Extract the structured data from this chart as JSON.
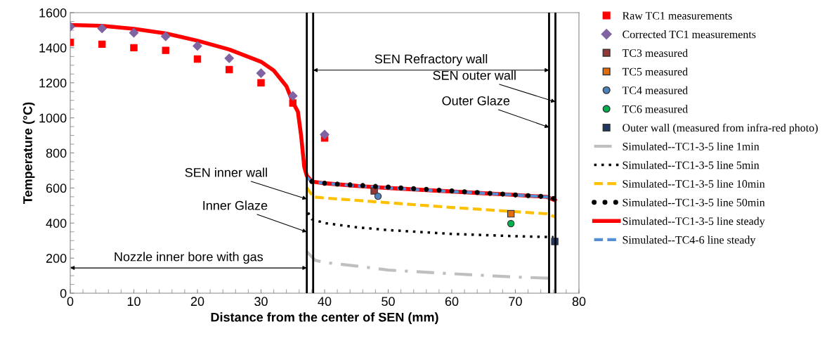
{
  "chart_data": {
    "type": "scatter",
    "xlabel": "Distance from the center of SEN (mm)",
    "ylabel": "Temperature (°C)",
    "xlim": [
      0,
      80
    ],
    "xticks": [
      0,
      10,
      20,
      30,
      40,
      50,
      60,
      70,
      80
    ],
    "ylim": [
      0,
      1600
    ],
    "yticks": [
      0,
      200,
      400,
      600,
      800,
      1000,
      1200,
      1400,
      1600
    ],
    "grid": false,
    "legend": "right",
    "series": [
      {
        "name": "Raw TC1 measurements",
        "marker": "square",
        "color": "#ff0000",
        "x": [
          0,
          5,
          10,
          15,
          20,
          25,
          30,
          35,
          40
        ],
        "values": [
          1430,
          1420,
          1400,
          1385,
          1335,
          1275,
          1200,
          1085,
          885
        ]
      },
      {
        "name": "Corrected TC1 measurements",
        "marker": "diamond",
        "color": "#8064a2",
        "x": [
          0,
          5,
          10,
          15,
          20,
          25,
          30,
          35,
          40
        ],
        "values": [
          1520,
          1510,
          1485,
          1465,
          1410,
          1340,
          1255,
          1125,
          905
        ]
      },
      {
        "name": "TC3 measured",
        "marker": "square",
        "color": "#953735",
        "x": [
          47.8
        ],
        "values": [
          583
        ]
      },
      {
        "name": "TC5 measured",
        "marker": "square",
        "color": "#e46c0a",
        "x": [
          69.3
        ],
        "values": [
          453
        ]
      },
      {
        "name": "TC4 measured",
        "marker": "circle",
        "color": "#4f81bd",
        "x": [
          48.4
        ],
        "values": [
          553
        ]
      },
      {
        "name": "TC6 measured",
        "marker": "circle",
        "color": "#00b050",
        "x": [
          69.3
        ],
        "values": [
          397
        ]
      },
      {
        "name": "Outer wall (measured from infra-red photo)",
        "marker": "square",
        "color": "#1f3864",
        "x": [
          76.2
        ],
        "values": [
          295
        ]
      },
      {
        "name": "Simulated--TC1-3-5 line 1min",
        "type": "line",
        "line_style": "dashdot",
        "color": "#bfbfbf",
        "x": [
          37.2,
          38.5,
          40,
          45,
          50,
          60,
          70,
          76
        ],
        "values": [
          237,
          188,
          175,
          155,
          132,
          111,
          92,
          85
        ]
      },
      {
        "name": "Simulated--TC1-3-5 line 5min",
        "type": "line",
        "line_style": "dotted",
        "color": "#000000",
        "x": [
          37.4,
          38,
          40,
          45,
          50,
          60,
          70,
          76
        ],
        "values": [
          460,
          422,
          400,
          376,
          360,
          338,
          325,
          320
        ]
      },
      {
        "name": "Simulated--TC1-3-5 line 10min",
        "type": "line",
        "line_style": "dashed",
        "color": "#ffc000",
        "x": [
          37.2,
          38.2,
          40,
          50,
          60,
          70,
          75,
          76.2
        ],
        "values": [
          602,
          549,
          543,
          516,
          489,
          465,
          453,
          436
        ]
      },
      {
        "name": "Simulated--TC1-3-5 line 50min",
        "marker": "circle",
        "color": "#000000",
        "x": [
          38,
          40,
          42,
          44,
          46,
          48,
          50,
          52,
          54,
          56,
          58,
          60,
          62,
          64,
          66,
          68,
          70,
          72,
          74,
          76
        ],
        "values": [
          637,
          627,
          622,
          618,
          614,
          609,
          605,
          600,
          596,
          592,
          587,
          583,
          578,
          574,
          569,
          565,
          560,
          556,
          552,
          540
        ]
      },
      {
        "name": "Simulated--TC1-3-5 line steady",
        "type": "line",
        "line_style": "solid",
        "color": "#ff0000",
        "x": [
          0,
          5,
          10,
          15,
          20,
          25,
          30,
          32,
          34,
          35,
          35.8,
          36.3,
          36.8,
          37.2,
          38,
          40,
          45,
          50,
          55,
          60,
          65,
          70,
          75,
          76.2
        ],
        "values": [
          1530,
          1525,
          1508,
          1482,
          1440,
          1390,
          1320,
          1270,
          1180,
          1090,
          1035,
          900,
          720,
          670,
          637,
          627,
          612,
          600,
          590,
          580,
          570,
          560,
          549,
          530
        ]
      },
      {
        "name": "Simulated--TC4-6 line steady",
        "type": "line",
        "line_style": "dashed",
        "color": "#558ed5",
        "x": [
          37.2,
          38,
          40,
          45,
          50,
          55,
          60,
          65,
          70,
          75,
          76.2
        ],
        "values": [
          660,
          637,
          627,
          612,
          600,
          590,
          580,
          570,
          560,
          549,
          530
        ]
      }
    ],
    "ref_lines": [
      {
        "axis": "x",
        "value": 37.2,
        "color": "#000000"
      },
      {
        "axis": "x",
        "value": 38.2,
        "color": "#000000"
      },
      {
        "axis": "x",
        "value": 75.3,
        "color": "#000000"
      },
      {
        "axis": "x",
        "value": 76.3,
        "color": "#000000"
      }
    ],
    "annotations": [
      "Nozzle inner bore with gas",
      "SEN Refractory wall",
      {
        "text": "SEN inner wall",
        "x": 37.2,
        "y": 537
      },
      {
        "text": "Inner Glaze",
        "x": 37.2,
        "y": 349
      },
      {
        "text": "SEN outer wall",
        "x": 76.3,
        "y": 1091
      },
      {
        "text": "Outer Glaze",
        "x": 75.3,
        "y": 946
      }
    ]
  }
}
